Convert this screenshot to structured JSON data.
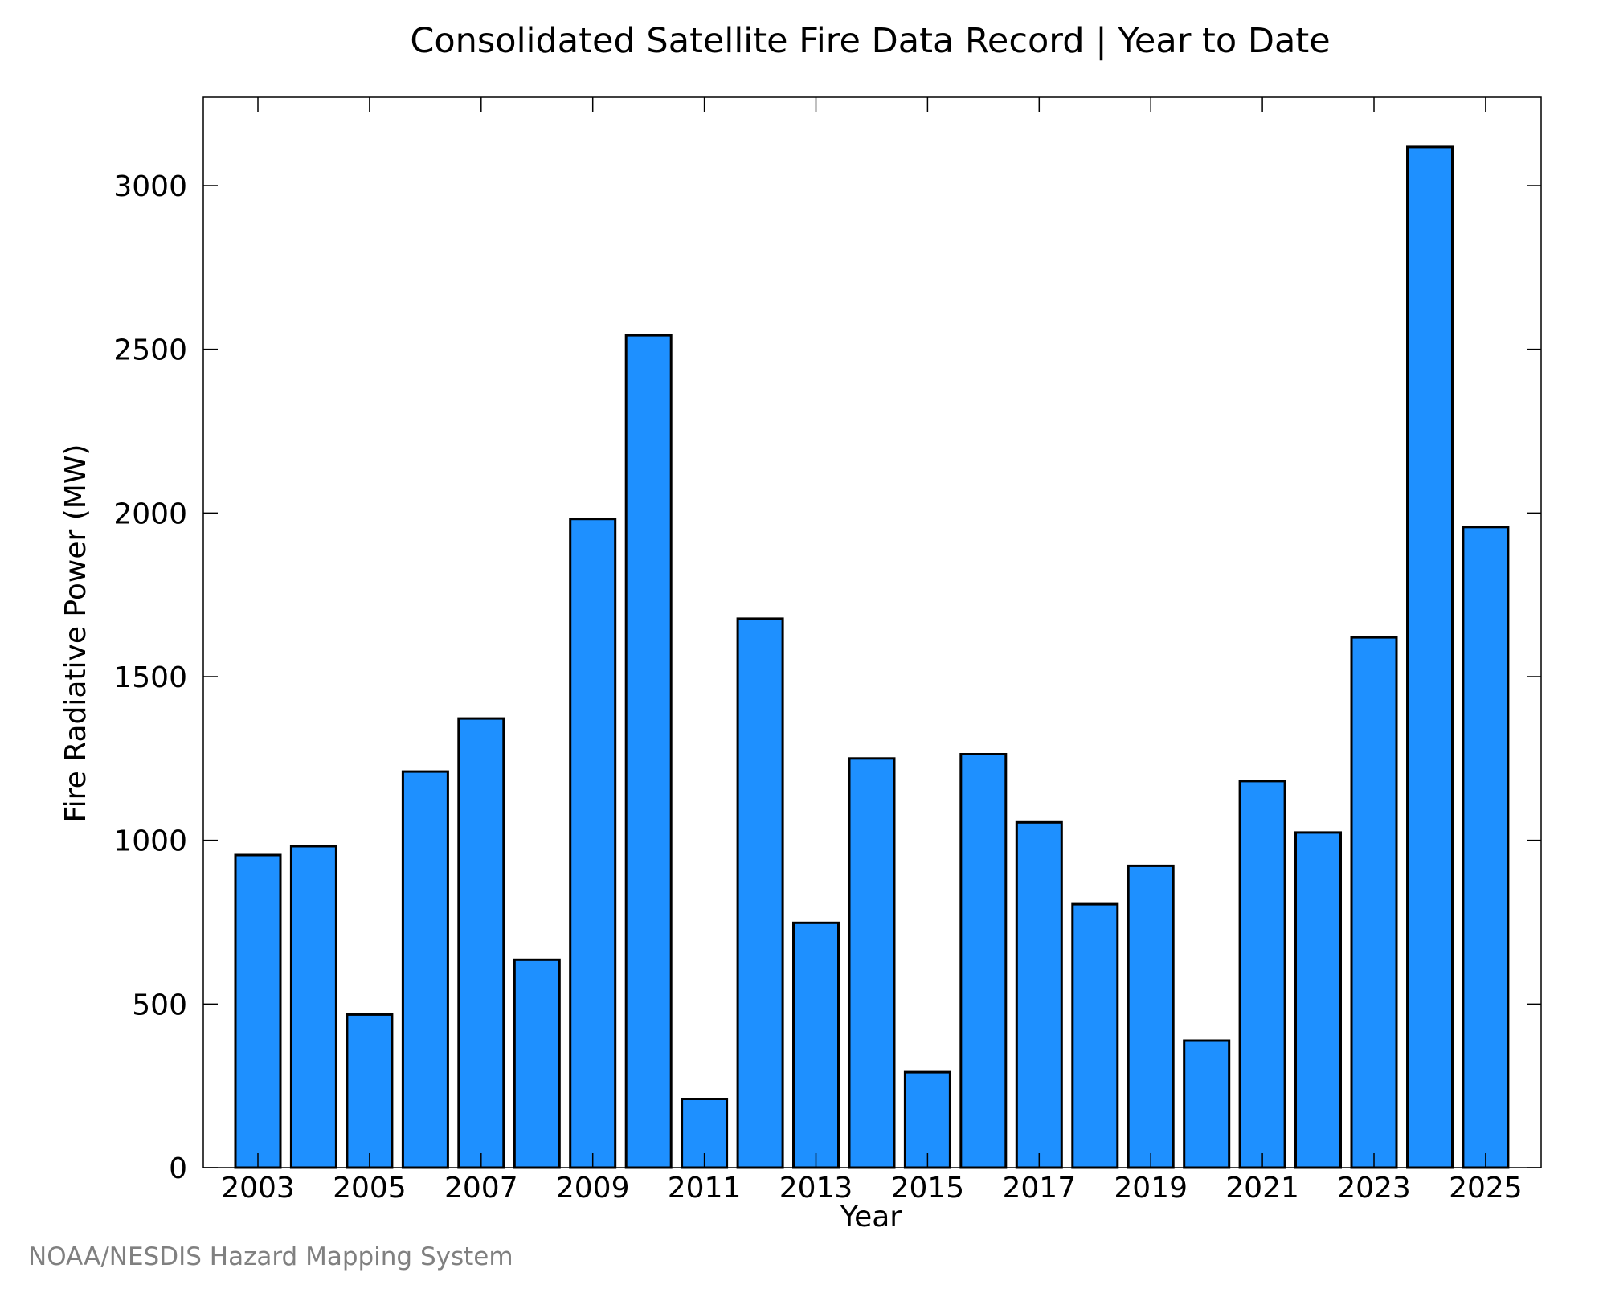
{
  "chart_data": {
    "type": "bar",
    "title": "Consolidated Satellite Fire Data Record | Year to Date",
    "xlabel": "Year",
    "ylabel": "Fire Radiative Power (MW)",
    "credit": "NOAA/NESDIS Hazard Mapping System",
    "categories": [
      "2003",
      "2004",
      "2005",
      "2006",
      "2007",
      "2008",
      "2009",
      "2010",
      "2011",
      "2012",
      "2013",
      "2014",
      "2015",
      "2016",
      "2017",
      "2018",
      "2019",
      "2020",
      "2021",
      "2022",
      "2023",
      "2024",
      "2025"
    ],
    "values": [
      955,
      982,
      468,
      1210,
      1372,
      635,
      1982,
      2543,
      210,
      1677,
      748,
      1250,
      292,
      1263,
      1055,
      805,
      922,
      388,
      1181,
      1024,
      1620,
      3118,
      1957
    ],
    "x_tick_labels": [
      "2003",
      "2005",
      "2007",
      "2009",
      "2011",
      "2013",
      "2015",
      "2017",
      "2019",
      "2021",
      "2023",
      "2025"
    ],
    "y_ticks": [
      0,
      500,
      1000,
      1500,
      2000,
      2500,
      3000
    ],
    "ylim": [
      0,
      3270
    ],
    "bar_color": "#1e90ff",
    "bar_edge_color": "#000000",
    "grid": false,
    "legend": "none"
  }
}
